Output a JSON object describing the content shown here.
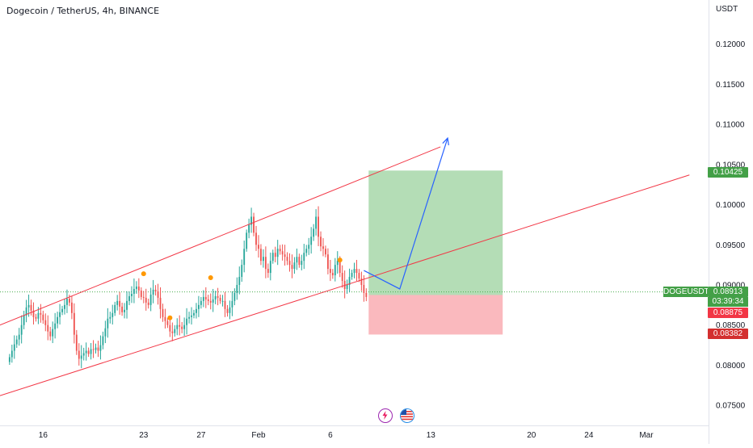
{
  "title": "Dogecoin / TetherUS, 4h, BINANCE",
  "axis_currency": "USDT",
  "symbol_badge": "DOGEUSDT",
  "current_price_label": "0.08913",
  "countdown": "03:39:34",
  "stop_price_label": "0.08875",
  "stop_loss_label": "0.08382",
  "target_label": "0.10425",
  "colors": {
    "up": "#26a69a",
    "down": "#ef5350",
    "channel": "#f23645",
    "arrow": "#2962ff",
    "target_zone": "#4caf50",
    "stop_zone": "#f23645",
    "current": "#4caf50",
    "dots": "#ff9800"
  },
  "chart_data": {
    "type": "candlestick",
    "title": "Dogecoin / TetherUS, 4h, BINANCE",
    "ylabel": "USDT",
    "ylim": [
      0.0725,
      0.1255
    ],
    "y_ticks": [
      0.075,
      0.08,
      0.085,
      0.09,
      0.095,
      0.1,
      0.105,
      0.11,
      0.115,
      0.12
    ],
    "y_tick_labels": [
      "0.07500",
      "0.08000",
      "0.08500",
      "0.09000",
      "0.09500",
      "0.10000",
      "0.10500",
      "0.11000",
      "0.11500",
      "0.12000"
    ],
    "x_ticks": [
      {
        "label": "16",
        "bar": 14
      },
      {
        "label": "23",
        "bar": 56
      },
      {
        "label": "27",
        "bar": 80
      },
      {
        "label": "Feb",
        "bar": 104
      },
      {
        "label": "6",
        "bar": 134
      },
      {
        "label": "13",
        "bar": 176
      },
      {
        "label": "20",
        "bar": 218
      },
      {
        "label": "24",
        "bar": 242
      },
      {
        "label": "Mar",
        "bar": 266
      }
    ],
    "x_range_bars": [
      -4,
      292
    ],
    "candles_close": [
      0.081,
      0.0818,
      0.0826,
      0.0832,
      0.0838,
      0.085,
      0.0862,
      0.0872,
      0.0875,
      0.0868,
      0.086,
      0.0858,
      0.0865,
      0.0863,
      0.0856,
      0.085,
      0.0842,
      0.0836,
      0.0845,
      0.0852,
      0.086,
      0.0866,
      0.087,
      0.0875,
      0.0883,
      0.0878,
      0.0865,
      0.0838,
      0.0818,
      0.0808,
      0.0812,
      0.0815,
      0.0818,
      0.0814,
      0.082,
      0.0819,
      0.0822,
      0.0818,
      0.0825,
      0.0836,
      0.0846,
      0.0858,
      0.086,
      0.0865,
      0.0875,
      0.088,
      0.0873,
      0.0866,
      0.0869,
      0.088,
      0.0886,
      0.0889,
      0.0895,
      0.0898,
      0.0893,
      0.0885,
      0.0884,
      0.0878,
      0.0875,
      0.0888,
      0.0894,
      0.0892,
      0.0884,
      0.087,
      0.086,
      0.0855,
      0.085,
      0.0842,
      0.084,
      0.0845,
      0.085,
      0.0848,
      0.0845,
      0.085,
      0.0858,
      0.086,
      0.0862,
      0.0865,
      0.087,
      0.0875,
      0.088,
      0.0885,
      0.0882,
      0.088,
      0.0878,
      0.0882,
      0.0886,
      0.0884,
      0.088,
      0.088,
      0.087,
      0.0865,
      0.0872,
      0.088,
      0.089,
      0.09,
      0.091,
      0.0925,
      0.0945,
      0.0965,
      0.0975,
      0.0985,
      0.0965,
      0.095,
      0.0945,
      0.093,
      0.0935,
      0.092,
      0.0915,
      0.093,
      0.094,
      0.0935,
      0.0945,
      0.0942,
      0.0938,
      0.0935,
      0.093,
      0.0925,
      0.092,
      0.0928,
      0.0935,
      0.0925,
      0.093,
      0.094,
      0.0945,
      0.095,
      0.096,
      0.097,
      0.0985,
      0.096,
      0.0948,
      0.0945,
      0.0938,
      0.092,
      0.0915,
      0.0912,
      0.0925,
      0.093,
      0.0915,
      0.0905,
      0.0895,
      0.09,
      0.091,
      0.0915,
      0.092,
      0.0915,
      0.0908,
      0.09,
      0.089,
      0.0885
    ],
    "channel_upper": {
      "start": [
        -4,
        0.085
      ],
      "end": [
        180,
        0.1072
      ]
    },
    "channel_lower": {
      "start": [
        -4,
        0.0762
      ],
      "end": [
        284,
        0.1037
      ]
    },
    "markers": [
      {
        "bar": 56,
        "price": 0.0914
      },
      {
        "bar": 67,
        "price": 0.0859
      },
      {
        "bar": 84,
        "price": 0.0909
      },
      {
        "bar": 138,
        "price": 0.0931
      }
    ],
    "position": {
      "from_bar": 150,
      "to_bar": 206,
      "target": 0.10425,
      "entry": 0.08875,
      "stop": 0.08382
    },
    "projection_path": [
      [
        148,
        0.0918
      ],
      [
        163,
        0.0895
      ],
      [
        183,
        0.1083
      ]
    ],
    "current_price": 0.08913
  }
}
